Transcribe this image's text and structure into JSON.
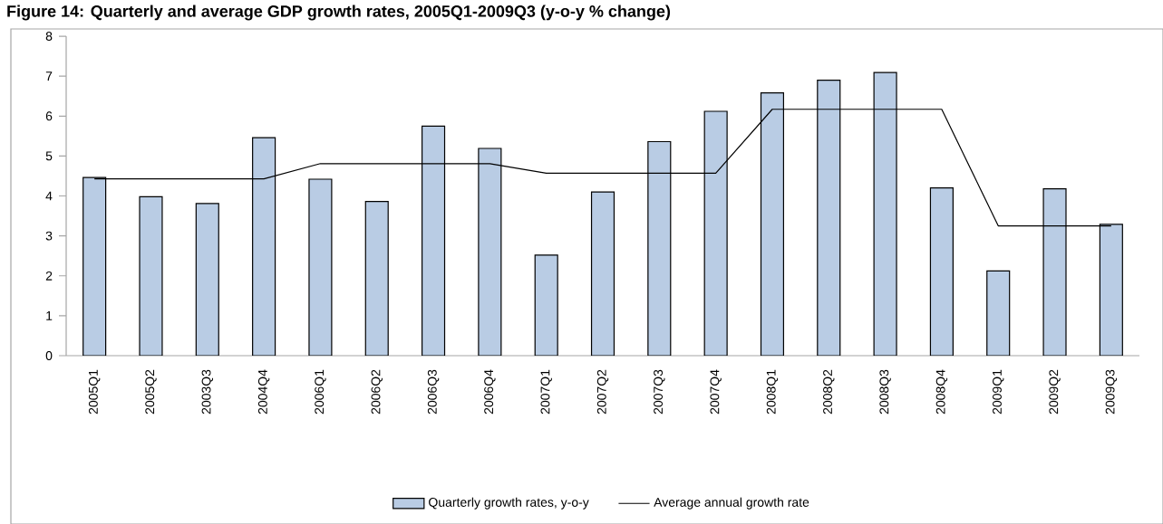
{
  "chart_data": {
    "type": "bar",
    "title": "Figure 14: Quarterly and average GDP growth rates, 2005Q1-2009Q3 (y-o-y % change)",
    "categories": [
      "2005Q1",
      "2005Q2",
      "2003Q3",
      "2004Q4",
      "2006Q1",
      "2006Q2",
      "2006Q3",
      "2006Q4",
      "2007Q1",
      "2007Q2",
      "2007Q3",
      "2007Q4",
      "2008Q1",
      "2008Q2",
      "2008Q3",
      "2008Q4",
      "2009Q1",
      "2009Q2",
      "2009Q3"
    ],
    "series": [
      {
        "name": "Quarterly growth rates, y-o-y",
        "color": "#b9cce4",
        "values": [
          4.46,
          3.98,
          3.81,
          5.46,
          4.42,
          3.86,
          5.75,
          5.19,
          2.52,
          4.1,
          5.36,
          6.12,
          6.58,
          6.9,
          7.09,
          4.2,
          2.12,
          4.18,
          3.29
        ]
      },
      {
        "name": "Average annual growth rate",
        "type": "line",
        "color": "#000000",
        "values": [
          4.43,
          4.43,
          4.43,
          4.43,
          4.81,
          4.81,
          4.81,
          4.81,
          4.57,
          4.57,
          4.57,
          4.57,
          6.17,
          6.17,
          6.17,
          6.17,
          3.25,
          3.25,
          3.25
        ]
      }
    ],
    "ylim": [
      0,
      8
    ],
    "yticks": [
      0,
      1,
      2,
      3,
      4,
      5,
      6,
      7,
      8
    ],
    "legend": "bottom"
  }
}
